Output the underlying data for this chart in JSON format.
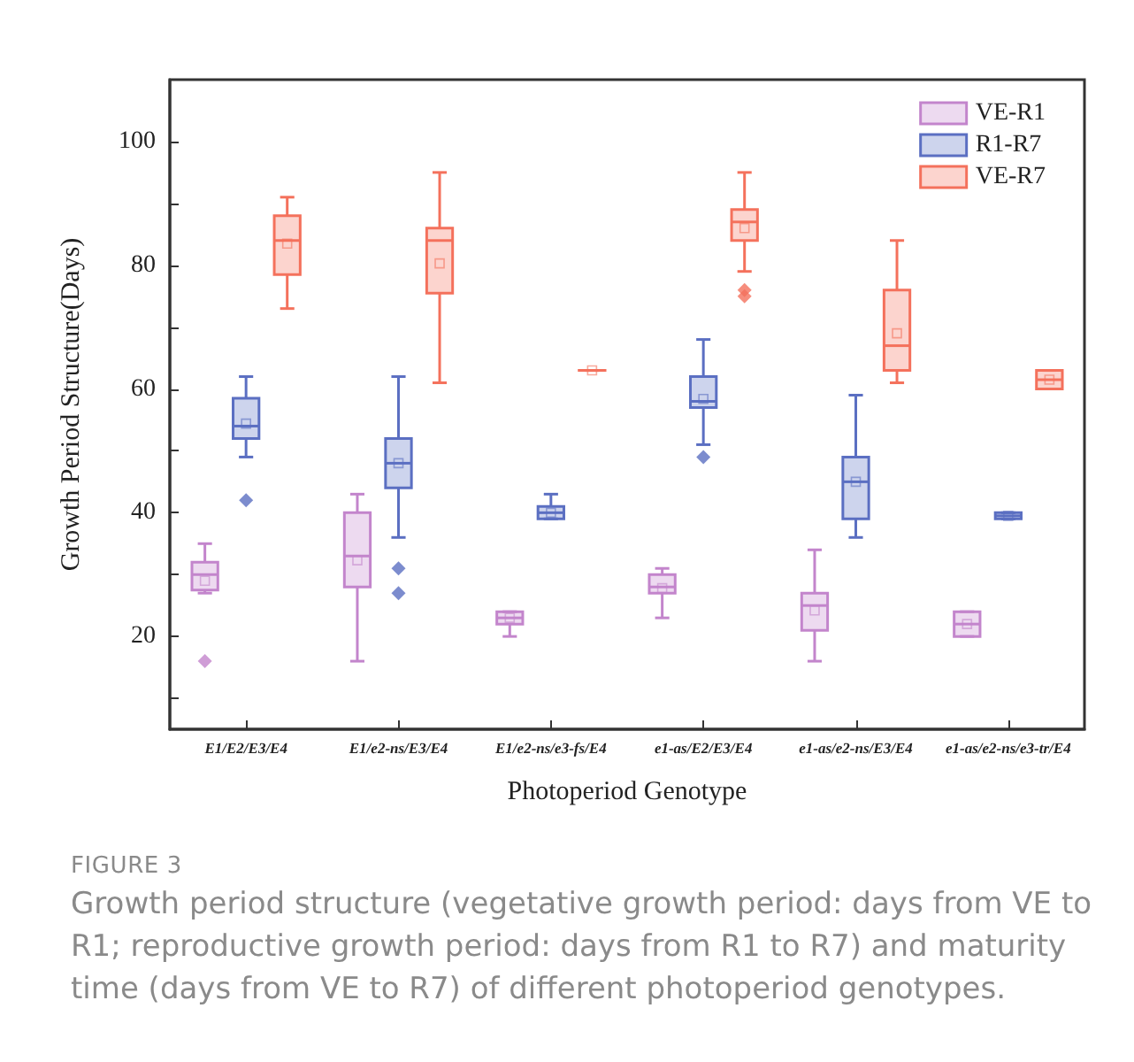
{
  "chart_data": {
    "type": "box",
    "xlabel": "Photoperiod Genotype",
    "ylabel": "Growth Period Structure(Days)",
    "categories": [
      "E1/E2/E3/E4",
      "E1/e2-ns/E3/E4",
      "E1/e2-ns/e3-fs/E4",
      "e1-as/E2/E3/E4",
      "e1-as/e2-ns/E3/E4",
      "e1-as/e2-ns/e3-tr/E4"
    ],
    "ylim": [
      5,
      110
    ],
    "yticks": [
      {
        "value": 10,
        "label": null
      },
      20,
      {
        "value": 30,
        "label": null
      },
      40,
      {
        "value": 50,
        "label": null
      },
      60,
      {
        "value": 70,
        "label": null
      },
      80,
      {
        "value": 90,
        "label": null
      },
      100
    ],
    "grid": false,
    "legend": "top right",
    "marker": "diamond",
    "series": [
      {
        "name": "VE-R1",
        "color": "#c385cc",
        "boxes": [
          {
            "low": 27,
            "q1": 27.5,
            "median": 30,
            "q3": 32,
            "high": 35,
            "mean": 29,
            "outliers": [
              16
            ]
          },
          {
            "low": 16,
            "q1": 28,
            "median": 33,
            "q3": 40,
            "high": 43,
            "mean": 32.3
          },
          {
            "low": 20,
            "q1": 22,
            "median": 23,
            "q3": 24,
            "high": 24,
            "mean": 23
          },
          {
            "low": 23,
            "q1": 27,
            "median": 28,
            "q3": 30,
            "high": 31,
            "mean": 27.8
          },
          {
            "low": 16,
            "q1": 21,
            "median": 25,
            "q3": 27,
            "high": 34,
            "mean": 24.2
          },
          {
            "low": 20,
            "q1": 20,
            "median": 22,
            "q3": 24,
            "high": 24,
            "mean": 22
          }
        ]
      },
      {
        "name": "R1-R7",
        "color": "#5b6fc2",
        "boxes": [
          {
            "low": 49,
            "q1": 52,
            "median": 54,
            "q3": 58.5,
            "high": 62,
            "mean": 54.4,
            "outliers": [
              42
            ]
          },
          {
            "low": 36,
            "q1": 44,
            "median": 48,
            "q3": 52,
            "high": 62,
            "mean": 48,
            "outliers": [
              31,
              27
            ]
          },
          {
            "low": 39,
            "q1": 39,
            "median": 40,
            "q3": 41,
            "high": 43,
            "mean": 40
          },
          {
            "low": 51,
            "q1": 57,
            "median": 58,
            "q3": 62,
            "high": 68,
            "mean": 58.4,
            "outliers": [
              49
            ]
          },
          {
            "low": 36,
            "q1": 39,
            "median": 45,
            "q3": 49,
            "high": 59,
            "mean": 45
          },
          {
            "low": 39,
            "q1": 39,
            "median": 39.5,
            "q3": 40,
            "high": 40,
            "mean": 39.5
          }
        ]
      },
      {
        "name": "VE-R7",
        "color": "#f4715c",
        "boxes": [
          {
            "low": 73,
            "q1": 78.5,
            "median": 84,
            "q3": 88,
            "high": 91,
            "mean": 83.5
          },
          {
            "low": 61,
            "q1": 75.5,
            "median": 84,
            "q3": 86,
            "high": 95,
            "mean": 80.3
          },
          {
            "low": 63,
            "q1": 63,
            "median": 63,
            "q3": 63,
            "high": 63,
            "mean": 63
          },
          {
            "low": 79,
            "q1": 84,
            "median": 87,
            "q3": 89,
            "high": 95,
            "mean": 86,
            "outliers": [
              76,
              75
            ]
          },
          {
            "low": 61,
            "q1": 63,
            "median": 67,
            "q3": 76,
            "high": 84,
            "mean": 69
          },
          {
            "low": 60,
            "q1": 60,
            "median": 61.5,
            "q3": 63,
            "high": 63,
            "mean": 61.5
          }
        ]
      }
    ],
    "annotations": [
      "FIGURE 3",
      "Growth period structure (vegetative growth period: days from VE to R1; reproductive growth period: days from R1 to R7) and maturity time (days from VE to R7) of different photoperiod genotypes."
    ]
  }
}
